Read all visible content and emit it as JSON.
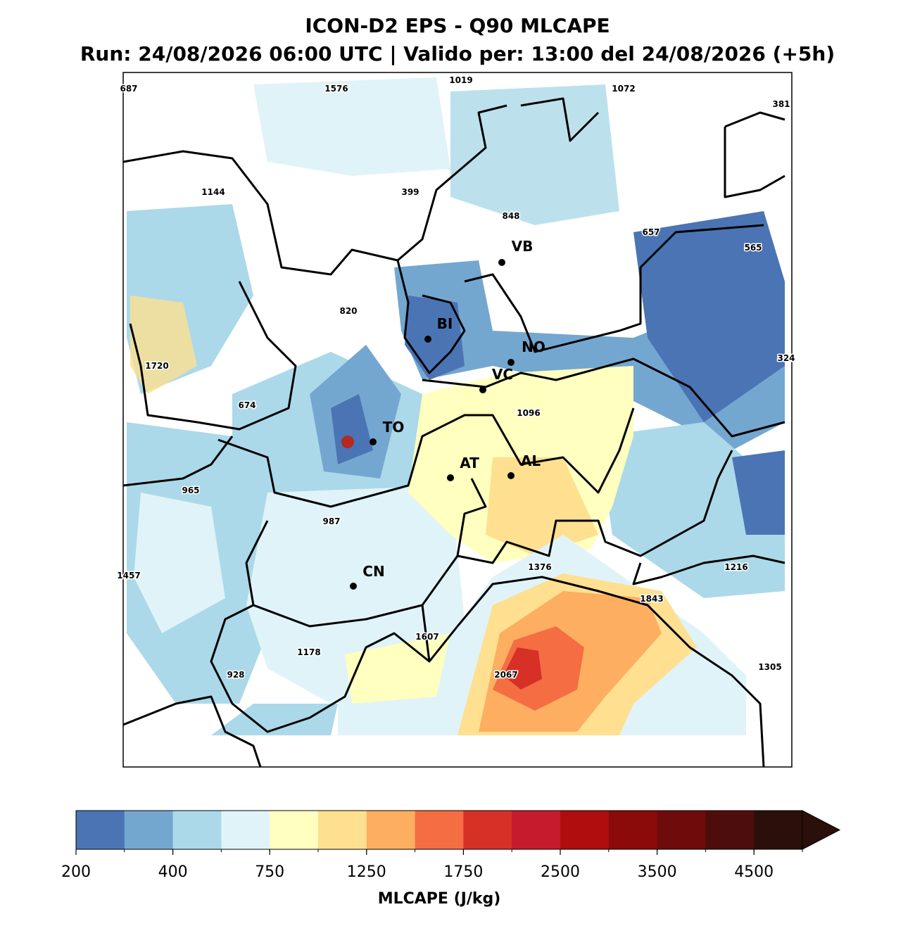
{
  "title": [
    "ICON-D2 EPS - Q90 MLCAPE",
    "Run: 24/08/2026 06:00 UTC | Valido per: 13:00 del 24/08/2026 (+5h)"
  ],
  "map": {
    "annotations": [
      687,
      1576,
      1019,
      1072,
      381,
      1144,
      399,
      848,
      657,
      565,
      820,
      1720,
      324,
      674,
      1096,
      965,
      987,
      1457,
      1376,
      1216,
      1843,
      1607,
      1178,
      928,
      2067,
      1305
    ],
    "cities": [
      "VB",
      "BI",
      "NO",
      "VC",
      "TO",
      "AT",
      "AL",
      "CN"
    ]
  },
  "colorbar": {
    "label": "MLCAPE (J/kg)",
    "levels": [
      200,
      300,
      400,
      500,
      750,
      1000,
      1250,
      1500,
      1750,
      2000,
      2500,
      3000,
      3500,
      4000,
      4500,
      5000
    ],
    "colors": [
      "#4a74b4",
      "#74a7d0",
      "#abd9e9",
      "#e0f3f8",
      "#ffffbf",
      "#fee090",
      "#fdae61",
      "#f46d43",
      "#d73027",
      "#c51b2c",
      "#b00d0e",
      "#8b0a0a",
      "#6e0c0c",
      "#4e0d0d",
      "#2b0f0b"
    ],
    "ticks": [
      200,
      400,
      750,
      1250,
      1750,
      2500,
      3500,
      4500
    ]
  }
}
